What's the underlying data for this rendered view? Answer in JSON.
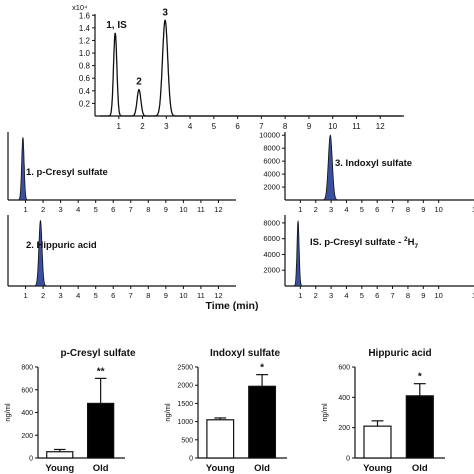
{
  "chart_data": [
    {
      "type": "line",
      "panel": "overview-chromatogram",
      "y_multiplier_label": "x10⁴",
      "xlim": [
        0,
        13
      ],
      "ylim": [
        0,
        1.6
      ],
      "x_ticks": [
        1,
        2,
        3,
        4,
        5,
        6,
        7,
        8,
        9,
        10,
        11,
        12
      ],
      "y_ticks": [
        0.2,
        0.4,
        0.6,
        0.8,
        1.0,
        1.2,
        1.4,
        1.6
      ],
      "peaks": [
        {
          "label": "1, IS",
          "x": 0.85,
          "y": 1.32,
          "width": 0.07
        },
        {
          "label": "2",
          "x": 1.85,
          "y": 0.42,
          "width": 0.08
        },
        {
          "label": "3",
          "x": 2.95,
          "y": 1.52,
          "width": 0.11
        }
      ]
    },
    {
      "type": "line",
      "panel": "p-cresyl-sulfate-trace",
      "label": "1. p-Cresyl sulfate",
      "xlim": [
        0,
        13
      ],
      "x_ticks": [
        1,
        2,
        3,
        4,
        5,
        6,
        7,
        8,
        9,
        10,
        11,
        12
      ],
      "peak": {
        "x": 0.85,
        "rel_height": 1.0,
        "width": 0.07
      }
    },
    {
      "type": "line",
      "panel": "indoxyl-sulfate-trace",
      "label": "3. Indoxyl sulfate",
      "xlim": [
        0,
        12.3
      ],
      "ylim": [
        0,
        10500
      ],
      "y_ticks": [
        2000,
        4000,
        6000,
        8000,
        10000
      ],
      "x_ticks": [
        1,
        2,
        3,
        4,
        5,
        6,
        7,
        8,
        9,
        10
      ],
      "x_tick_cut": "1",
      "peak": {
        "x": 2.95,
        "y": 10000,
        "width": 0.13
      }
    },
    {
      "type": "line",
      "panel": "hippuric-acid-trace",
      "label": "2. Hippuric acid",
      "xlim": [
        0,
        13
      ],
      "x_ticks": [
        1,
        2,
        3,
        4,
        5,
        6,
        7,
        8,
        9,
        10,
        11,
        12
      ],
      "peak": {
        "x": 1.85,
        "rel_height": 1.0,
        "width": 0.09
      }
    },
    {
      "type": "line",
      "panel": "is-trace",
      "label_main": "IS. p-Cresyl sulfate - ",
      "label_sup": "2",
      "label_h": "H",
      "label_sub": "7",
      "xlim": [
        0,
        12.3
      ],
      "ylim": [
        0,
        9000
      ],
      "y_ticks": [
        2000,
        4000,
        6000,
        8000
      ],
      "x_ticks": [
        1,
        2,
        3,
        4,
        5,
        6,
        7,
        8,
        9,
        10
      ],
      "x_tick_cut": "1",
      "peak": {
        "x": 0.85,
        "y": 8200,
        "width": 0.07
      },
      "xlabel": "Time (min)"
    },
    {
      "type": "bar",
      "title": "p-Cresyl sulfate",
      "ylabel": "ng/ml",
      "categories": [
        "Young",
        "Old"
      ],
      "values": [
        55,
        480
      ],
      "errors": [
        20,
        220
      ],
      "ylim": [
        0,
        800
      ],
      "y_ticks": [
        0,
        200,
        400,
        600,
        800
      ],
      "significance": "**"
    },
    {
      "type": "bar",
      "title": "Indoxyl sulfate",
      "ylabel": "ng/ml",
      "categories": [
        "Young",
        "Old"
      ],
      "values": [
        1050,
        1970
      ],
      "errors": [
        50,
        320
      ],
      "ylim": [
        0,
        2500
      ],
      "y_ticks": [
        0,
        500,
        1000,
        1500,
        2000,
        2500
      ],
      "significance": "*"
    },
    {
      "type": "bar",
      "title": "Hippuric acid",
      "ylabel": "ng/ml",
      "categories": [
        "Young",
        "Old"
      ],
      "values": [
        210,
        410
      ],
      "errors": [
        35,
        80
      ],
      "ylim": [
        0,
        600
      ],
      "y_ticks": [
        0,
        200,
        400,
        600
      ],
      "significance": "*"
    }
  ],
  "colors": {
    "axis": "#111111",
    "peak_fill": "#3a4f9e",
    "young_fill": "#ffffff",
    "old_fill": "#000000"
  }
}
